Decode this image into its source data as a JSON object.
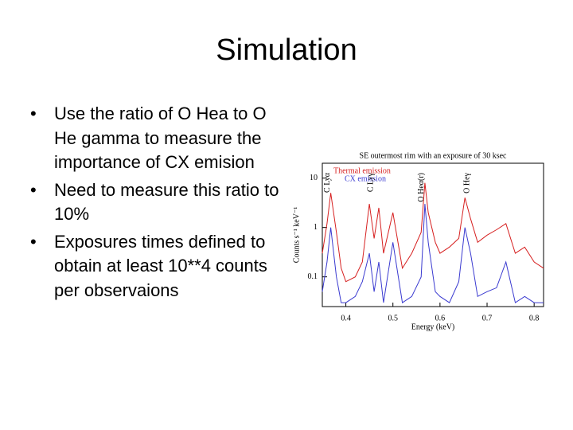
{
  "title": "Simulation",
  "bullets": [
    "Use the ratio of O Hea to O He gamma to measure the importance of CX emision",
    "Need to measure this ratio to 10%",
    "Exposures times defined to obtain at least 10**4 counts per observaions"
  ],
  "chart_data": {
    "type": "line",
    "title": "SE outermost rim with an exposure of 30 ksec",
    "x_label": "Energy (keV)",
    "y_label": "Counts s⁻¹ keV⁻¹",
    "yscale": "log",
    "xlim": [
      0.35,
      0.82
    ],
    "ylim": [
      0.025,
      20
    ],
    "xticks": [
      0.4,
      0.5,
      0.6,
      0.7,
      0.8
    ],
    "yticks": [
      10,
      1,
      0.1
    ],
    "x": [
      0.35,
      0.36,
      0.368,
      0.38,
      0.39,
      0.4,
      0.42,
      0.435,
      0.45,
      0.46,
      0.47,
      0.48,
      0.5,
      0.52,
      0.54,
      0.56,
      0.568,
      0.575,
      0.59,
      0.6,
      0.62,
      0.64,
      0.653,
      0.665,
      0.68,
      0.7,
      0.72,
      0.74,
      0.76,
      0.78,
      0.8,
      0.82
    ],
    "series": [
      {
        "name": "Thermal emission",
        "color": "#d62020",
        "values": [
          0.3,
          1.2,
          5,
          0.8,
          0.15,
          0.08,
          0.1,
          0.2,
          3,
          0.6,
          2.5,
          0.3,
          2,
          0.15,
          0.3,
          0.8,
          8,
          2,
          0.5,
          0.3,
          0.4,
          0.6,
          4,
          1.5,
          0.5,
          0.7,
          0.9,
          1.2,
          0.3,
          0.4,
          0.2,
          0.15
        ]
      },
      {
        "name": "CX emission",
        "color": "#3a3ad0",
        "values": [
          0.05,
          0.2,
          1,
          0.1,
          0.03,
          0.03,
          0.04,
          0.08,
          0.3,
          0.05,
          0.2,
          0.03,
          0.5,
          0.03,
          0.04,
          0.1,
          3,
          0.5,
          0.05,
          0.04,
          0.03,
          0.08,
          1,
          0.3,
          0.04,
          0.05,
          0.06,
          0.2,
          0.03,
          0.04,
          0.03,
          0.03
        ]
      }
    ],
    "annotations": [
      {
        "text": "C Lyα",
        "x": 0.368
      },
      {
        "text": "C Lyγ",
        "x": 0.46
      },
      {
        "text": "O Heα(r)",
        "x": 0.568
      },
      {
        "text": "O Heγ",
        "x": 0.665
      }
    ]
  }
}
